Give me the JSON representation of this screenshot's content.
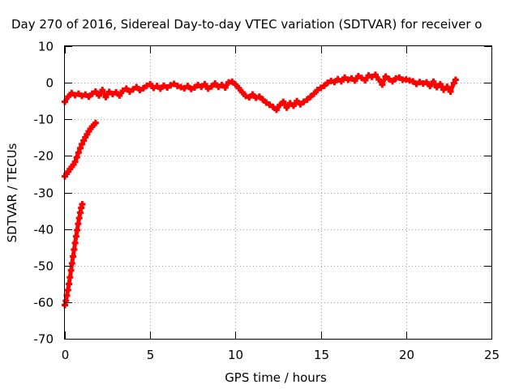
{
  "chart_data": {
    "type": "scatter",
    "title": "Day 270 of 2016, Sidereal Day-to-day VTEC variation (SDTVAR) for receiver o",
    "xlabel": "GPS time / hours",
    "ylabel": "SDTVAR / TECUs",
    "xlim": [
      0,
      25
    ],
    "ylim": [
      -70,
      10
    ],
    "x_ticks": [
      0,
      5,
      10,
      15,
      20,
      25
    ],
    "x_tick_labels": [
      "0",
      "5",
      "10",
      "15",
      "20",
      "25"
    ],
    "y_ticks": [
      10,
      0,
      -10,
      -20,
      -30,
      -40,
      -50,
      -60,
      -70
    ],
    "y_tick_labels": [
      "10",
      "0",
      "-10",
      "-20",
      "-30",
      "-40",
      "-50",
      "-60",
      "-70"
    ],
    "grid": true,
    "legend": "none",
    "marker_color": "#ff0000",
    "series": [
      {
        "points": [
          [
            0.0,
            -5.2
          ],
          [
            0.2,
            -3.8
          ],
          [
            0.4,
            -2.8
          ],
          [
            0.6,
            -3.4
          ],
          [
            0.8,
            -3.0
          ],
          [
            1.0,
            -3.6
          ],
          [
            1.2,
            -3.2
          ],
          [
            1.4,
            -3.8
          ],
          [
            1.6,
            -3.0
          ],
          [
            1.8,
            -2.4
          ],
          [
            2.0,
            -3.5
          ],
          [
            2.2,
            -2.0
          ],
          [
            2.4,
            -3.9
          ],
          [
            2.6,
            -2.5
          ],
          [
            2.8,
            -3.1
          ],
          [
            3.0,
            -2.6
          ],
          [
            3.2,
            -3.5
          ],
          [
            3.4,
            -2.2
          ],
          [
            3.6,
            -1.6
          ],
          [
            3.8,
            -2.4
          ],
          [
            4.0,
            -1.8
          ],
          [
            4.2,
            -1.2
          ],
          [
            4.4,
            -2.0
          ],
          [
            4.6,
            -1.5
          ],
          [
            4.8,
            -0.8
          ],
          [
            5.0,
            -0.4
          ],
          [
            5.2,
            -1.4
          ],
          [
            5.4,
            -0.9
          ],
          [
            5.6,
            -1.6
          ],
          [
            5.8,
            -0.8
          ],
          [
            6.0,
            -1.3
          ],
          [
            6.2,
            -0.7
          ],
          [
            6.4,
            -0.3
          ],
          [
            6.6,
            -0.9
          ],
          [
            6.8,
            -1.2
          ],
          [
            7.0,
            -1.5
          ],
          [
            7.2,
            -0.9
          ],
          [
            7.4,
            -1.7
          ],
          [
            7.6,
            -1.3
          ],
          [
            7.8,
            -0.6
          ],
          [
            8.0,
            -1.1
          ],
          [
            8.2,
            -0.4
          ],
          [
            8.4,
            -1.6
          ],
          [
            8.6,
            -1.0
          ],
          [
            8.8,
            -0.2
          ],
          [
            9.0,
            -1.1
          ],
          [
            9.2,
            -0.6
          ],
          [
            9.4,
            -1.3
          ],
          [
            9.6,
            0.1
          ],
          [
            9.8,
            0.3
          ],
          [
            10.0,
            -0.5
          ],
          [
            10.2,
            -1.5
          ],
          [
            10.4,
            -2.6
          ],
          [
            10.6,
            -3.6
          ],
          [
            10.8,
            -4.0
          ],
          [
            11.0,
            -3.2
          ],
          [
            11.2,
            -4.1
          ],
          [
            11.4,
            -3.8
          ],
          [
            11.6,
            -4.6
          ],
          [
            11.8,
            -5.4
          ],
          [
            12.0,
            -6.0
          ],
          [
            12.2,
            -6.6
          ],
          [
            12.4,
            -7.4
          ],
          [
            12.6,
            -6.1
          ],
          [
            12.8,
            -5.2
          ],
          [
            13.0,
            -6.8
          ],
          [
            13.2,
            -5.6
          ],
          [
            13.4,
            -6.3
          ],
          [
            13.6,
            -5.0
          ],
          [
            13.8,
            -5.9
          ],
          [
            14.0,
            -5.2
          ],
          [
            14.2,
            -4.6
          ],
          [
            14.4,
            -3.8
          ],
          [
            14.6,
            -3.0
          ],
          [
            14.8,
            -2.0
          ],
          [
            15.0,
            -1.4
          ],
          [
            15.2,
            -0.8
          ],
          [
            15.4,
            0.0
          ],
          [
            15.6,
            0.5
          ],
          [
            15.8,
            0.2
          ],
          [
            16.0,
            1.0
          ],
          [
            16.2,
            0.4
          ],
          [
            16.4,
            1.4
          ],
          [
            16.6,
            0.8
          ],
          [
            16.8,
            1.2
          ],
          [
            17.0,
            0.6
          ],
          [
            17.2,
            1.8
          ],
          [
            17.4,
            1.3
          ],
          [
            17.6,
            0.7
          ],
          [
            17.8,
            2.0
          ],
          [
            18.0,
            1.6
          ],
          [
            18.2,
            2.2
          ],
          [
            18.4,
            0.9
          ],
          [
            18.6,
            -0.5
          ],
          [
            18.8,
            1.7
          ],
          [
            19.0,
            1.0
          ],
          [
            19.2,
            0.4
          ],
          [
            19.4,
            1.2
          ],
          [
            19.6,
            1.4
          ],
          [
            19.8,
            0.8
          ],
          [
            20.0,
            0.9
          ],
          [
            20.2,
            0.6
          ],
          [
            20.4,
            0.4
          ],
          [
            20.6,
            -0.3
          ],
          [
            20.8,
            0.2
          ],
          [
            21.0,
            -0.2
          ],
          [
            21.2,
            0.1
          ],
          [
            21.4,
            -0.9
          ],
          [
            21.6,
            0.3
          ],
          [
            21.8,
            -1.2
          ],
          [
            22.0,
            -0.4
          ],
          [
            22.2,
            -1.9
          ],
          [
            22.4,
            -1.1
          ],
          [
            22.6,
            -2.4
          ],
          [
            22.8,
            -0.1
          ],
          [
            22.9,
            0.8
          ]
        ]
      },
      {
        "points": [
          [
            0.0,
            -25.6
          ],
          [
            0.1,
            -24.9
          ],
          [
            0.2,
            -24.3
          ],
          [
            0.3,
            -23.6
          ],
          [
            0.4,
            -23.0
          ],
          [
            0.5,
            -22.4
          ],
          [
            0.6,
            -21.6
          ],
          [
            0.7,
            -20.4
          ],
          [
            0.8,
            -19.1
          ],
          [
            0.9,
            -17.9
          ],
          [
            1.0,
            -16.8
          ],
          [
            1.1,
            -15.8
          ],
          [
            1.2,
            -14.9
          ],
          [
            1.3,
            -14.1
          ],
          [
            1.4,
            -13.3
          ],
          [
            1.5,
            -12.6
          ],
          [
            1.6,
            -12.0
          ],
          [
            1.7,
            -11.5
          ],
          [
            1.8,
            -11.0
          ]
        ]
      },
      {
        "points": [
          [
            0.0,
            -60.8
          ],
          [
            0.06,
            -59.6
          ],
          [
            0.12,
            -58.2
          ],
          [
            0.18,
            -56.7
          ],
          [
            0.24,
            -55.0
          ],
          [
            0.3,
            -53.2
          ],
          [
            0.36,
            -51.3
          ],
          [
            0.42,
            -49.4
          ],
          [
            0.48,
            -47.5
          ],
          [
            0.54,
            -45.6
          ],
          [
            0.6,
            -43.8
          ],
          [
            0.66,
            -42.0
          ],
          [
            0.72,
            -40.3
          ],
          [
            0.78,
            -38.6
          ],
          [
            0.84,
            -37.0
          ],
          [
            0.9,
            -35.5
          ],
          [
            0.96,
            -34.2
          ],
          [
            1.02,
            -33.2
          ]
        ]
      }
    ]
  }
}
